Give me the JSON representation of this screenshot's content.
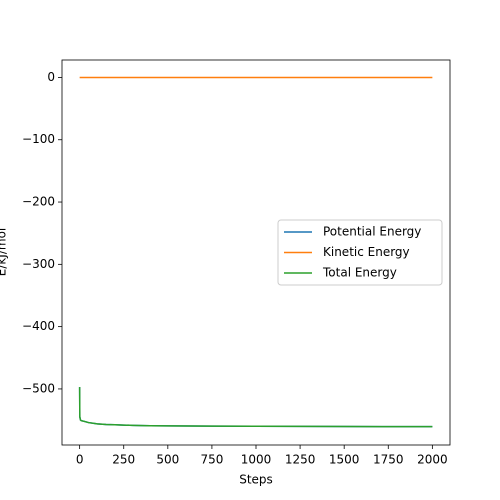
{
  "chart_data": {
    "type": "line",
    "x_label": "Steps",
    "y_label": "E/kJ/mol",
    "x": [
      0,
      1,
      5,
      10,
      25,
      50,
      100,
      150,
      200,
      250,
      300,
      400,
      500,
      750,
      1000,
      1250,
      1500,
      1750,
      2000
    ],
    "series": [
      {
        "name": "Potential Energy",
        "color": "#1f77b4",
        "values": [
          -497,
          -545,
          -550,
          -551,
          -552,
          -554,
          -556,
          -557,
          -557.5,
          -558,
          -558.5,
          -559,
          -559.3,
          -559.7,
          -560,
          -560.2,
          -560.4,
          -560.5,
          -560.6
        ]
      },
      {
        "name": "Kinetic Energy",
        "color": "#ff7f0e",
        "values": [
          0,
          0,
          0,
          0,
          0,
          0,
          0,
          0,
          0,
          0,
          0,
          0,
          0,
          0,
          0,
          0,
          0,
          0,
          0
        ]
      },
      {
        "name": "Total Energy",
        "color": "#2ca02c",
        "values": [
          -497,
          -545,
          -550,
          -551,
          -552,
          -554,
          -556,
          -557,
          -557.5,
          -558,
          -558.5,
          -559,
          -559.3,
          -559.7,
          -560,
          -560.2,
          -560.4,
          -560.5,
          -560.6
        ]
      }
    ],
    "xlim": [
      -100,
      2100
    ],
    "ylim": [
      -590,
      28
    ],
    "xticks": [
      0,
      250,
      500,
      750,
      1000,
      1250,
      1500,
      1750,
      2000
    ],
    "yticks": [
      {
        "value": -500,
        "label": "−500"
      },
      {
        "value": -400,
        "label": "−400"
      },
      {
        "value": -300,
        "label": "−300"
      },
      {
        "value": -200,
        "label": "−200"
      },
      {
        "value": -100,
        "label": "−100"
      },
      0
    ],
    "legend": "center right"
  }
}
